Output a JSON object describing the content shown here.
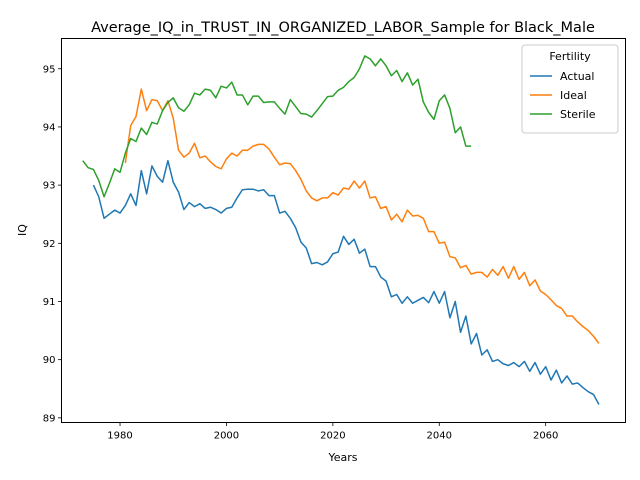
{
  "chart_data": {
    "type": "line",
    "title": "Average_IQ_in_TRUST_IN_ORGANIZED_LABOR_Sample for Black_Male",
    "xlabel": "Years",
    "ylabel": "IQ",
    "xlim": [
      1969,
      2075
    ],
    "ylim": [
      88.92,
      95.52
    ],
    "xticks": [
      1980,
      2000,
      2020,
      2040,
      2060
    ],
    "yticks": [
      89,
      90,
      91,
      92,
      93,
      94,
      95
    ],
    "grid": false,
    "legend": {
      "title": "Fertility",
      "position": "top-right"
    },
    "series": [
      {
        "name": "Actual",
        "color": "#1f77b4",
        "x": [
          1975,
          1976,
          1977,
          1978,
          1979,
          1980,
          1981,
          1982,
          1983,
          1984,
          1985,
          1986,
          1987,
          1988,
          1989,
          1990,
          1991,
          1992,
          1993,
          1994,
          1995,
          1996,
          1997,
          1998,
          1999,
          2000,
          2001,
          2002,
          2003,
          2004,
          2005,
          2006,
          2007,
          2008,
          2009,
          2010,
          2011,
          2012,
          2013,
          2014,
          2015,
          2016,
          2017,
          2018,
          2019,
          2020,
          2021,
          2022,
          2023,
          2024,
          2025,
          2026,
          2027,
          2028,
          2029,
          2030,
          2031,
          2032,
          2033,
          2034,
          2035,
          2036,
          2037,
          2038,
          2039,
          2040,
          2041,
          2042,
          2043,
          2044,
          2045,
          2046,
          2047,
          2048,
          2049,
          2050,
          2051,
          2052,
          2053,
          2054,
          2055,
          2056,
          2057,
          2058,
          2059,
          2060,
          2061,
          2062,
          2063,
          2064,
          2065,
          2066,
          2067,
          2068,
          2069,
          2070
        ],
        "values": [
          93.0,
          92.8,
          92.43,
          92.5,
          92.57,
          92.52,
          92.65,
          92.85,
          92.65,
          93.25,
          92.85,
          93.33,
          93.15,
          93.05,
          93.42,
          93.05,
          92.88,
          92.58,
          92.7,
          92.63,
          92.68,
          92.6,
          92.62,
          92.58,
          92.52,
          92.6,
          92.62,
          92.78,
          92.92,
          92.93,
          92.93,
          92.9,
          92.92,
          92.82,
          92.82,
          92.52,
          92.55,
          92.43,
          92.27,
          92.02,
          91.92,
          91.65,
          91.67,
          91.63,
          91.68,
          91.82,
          91.85,
          92.12,
          91.98,
          92.07,
          91.83,
          91.9,
          91.6,
          91.6,
          91.42,
          91.35,
          91.08,
          91.12,
          90.97,
          91.08,
          90.97,
          91.02,
          91.07,
          90.98,
          91.17,
          90.97,
          91.17,
          90.72,
          91.0,
          90.47,
          90.75,
          90.27,
          90.45,
          90.08,
          90.17,
          89.97,
          90.0,
          89.93,
          89.9,
          89.95,
          89.88,
          89.97,
          89.8,
          89.95,
          89.75,
          89.88,
          89.65,
          89.82,
          89.6,
          89.72,
          89.58,
          89.6,
          89.52,
          89.45,
          89.4,
          89.23
        ]
      },
      {
        "name": "Ideal",
        "color": "#ff7f0e",
        "x": [
          1981,
          1982,
          1983,
          1984,
          1985,
          1986,
          1987,
          1988,
          1989,
          1990,
          1991,
          1992,
          1993,
          1994,
          1995,
          1996,
          1997,
          1998,
          1999,
          2000,
          2001,
          2002,
          2003,
          2004,
          2005,
          2006,
          2007,
          2008,
          2009,
          2010,
          2011,
          2012,
          2013,
          2014,
          2015,
          2016,
          2017,
          2018,
          2019,
          2020,
          2021,
          2022,
          2023,
          2024,
          2025,
          2026,
          2027,
          2028,
          2029,
          2030,
          2031,
          2032,
          2033,
          2034,
          2035,
          2036,
          2037,
          2038,
          2039,
          2040,
          2041,
          2042,
          2043,
          2044,
          2045,
          2046,
          2047,
          2048,
          2049,
          2050,
          2051,
          2052,
          2053,
          2054,
          2055,
          2056,
          2057,
          2058,
          2059,
          2060,
          2061,
          2062,
          2063,
          2064,
          2065,
          2066,
          2067,
          2068,
          2069,
          2070
        ],
        "values": [
          93.38,
          94.02,
          94.18,
          94.65,
          94.28,
          94.47,
          94.45,
          94.28,
          94.45,
          94.15,
          93.6,
          93.48,
          93.55,
          93.72,
          93.47,
          93.5,
          93.4,
          93.32,
          93.28,
          93.45,
          93.55,
          93.5,
          93.6,
          93.6,
          93.67,
          93.7,
          93.7,
          93.62,
          93.48,
          93.35,
          93.38,
          93.37,
          93.25,
          93.1,
          92.9,
          92.78,
          92.73,
          92.78,
          92.78,
          92.87,
          92.83,
          92.95,
          92.93,
          93.07,
          92.95,
          93.07,
          92.78,
          92.8,
          92.6,
          92.63,
          92.4,
          92.5,
          92.37,
          92.57,
          92.47,
          92.48,
          92.43,
          92.2,
          92.2,
          92.0,
          92.02,
          91.77,
          91.75,
          91.58,
          91.62,
          91.47,
          91.5,
          91.5,
          91.42,
          91.55,
          91.45,
          91.6,
          91.4,
          91.6,
          91.38,
          91.5,
          91.27,
          91.37,
          91.18,
          91.12,
          91.03,
          90.93,
          90.88,
          90.75,
          90.75,
          90.65,
          90.57,
          90.5,
          90.4,
          90.28
        ]
      },
      {
        "name": "Sterile",
        "color": "#2ca02c",
        "x": [
          1973,
          1974,
          1975,
          1976,
          1977,
          1978,
          1979,
          1980,
          1981,
          1982,
          1983,
          1984,
          1985,
          1986,
          1987,
          1988,
          1989,
          1990,
          1991,
          1992,
          1993,
          1994,
          1995,
          1996,
          1997,
          1998,
          1999,
          2000,
          2001,
          2002,
          2003,
          2004,
          2005,
          2006,
          2007,
          2008,
          2009,
          2010,
          2011,
          2012,
          2013,
          2014,
          2015,
          2016,
          2017,
          2018,
          2019,
          2020,
          2021,
          2022,
          2023,
          2024,
          2025,
          2026,
          2027,
          2028,
          2029,
          2030,
          2031,
          2032,
          2033,
          2034,
          2035,
          2036,
          2037,
          2038,
          2039,
          2040,
          2041,
          2042,
          2043,
          2044,
          2045,
          2046
        ],
        "values": [
          93.42,
          93.3,
          93.27,
          93.08,
          92.8,
          93.03,
          93.28,
          93.22,
          93.55,
          93.8,
          93.75,
          93.98,
          93.87,
          94.08,
          94.05,
          94.28,
          94.42,
          94.5,
          94.33,
          94.27,
          94.38,
          94.58,
          94.55,
          94.65,
          94.63,
          94.5,
          94.7,
          94.67,
          94.77,
          94.55,
          94.55,
          94.38,
          94.53,
          94.53,
          94.42,
          94.43,
          94.43,
          94.32,
          94.22,
          94.47,
          94.35,
          94.23,
          94.22,
          94.17,
          94.28,
          94.4,
          94.52,
          94.53,
          94.63,
          94.68,
          94.78,
          94.85,
          95.0,
          95.22,
          95.17,
          95.05,
          95.17,
          95.05,
          94.88,
          94.97,
          94.78,
          94.93,
          94.72,
          94.82,
          94.43,
          94.25,
          94.13,
          94.45,
          94.55,
          94.32,
          93.9,
          94.0,
          93.67,
          93.67
        ]
      }
    ]
  }
}
